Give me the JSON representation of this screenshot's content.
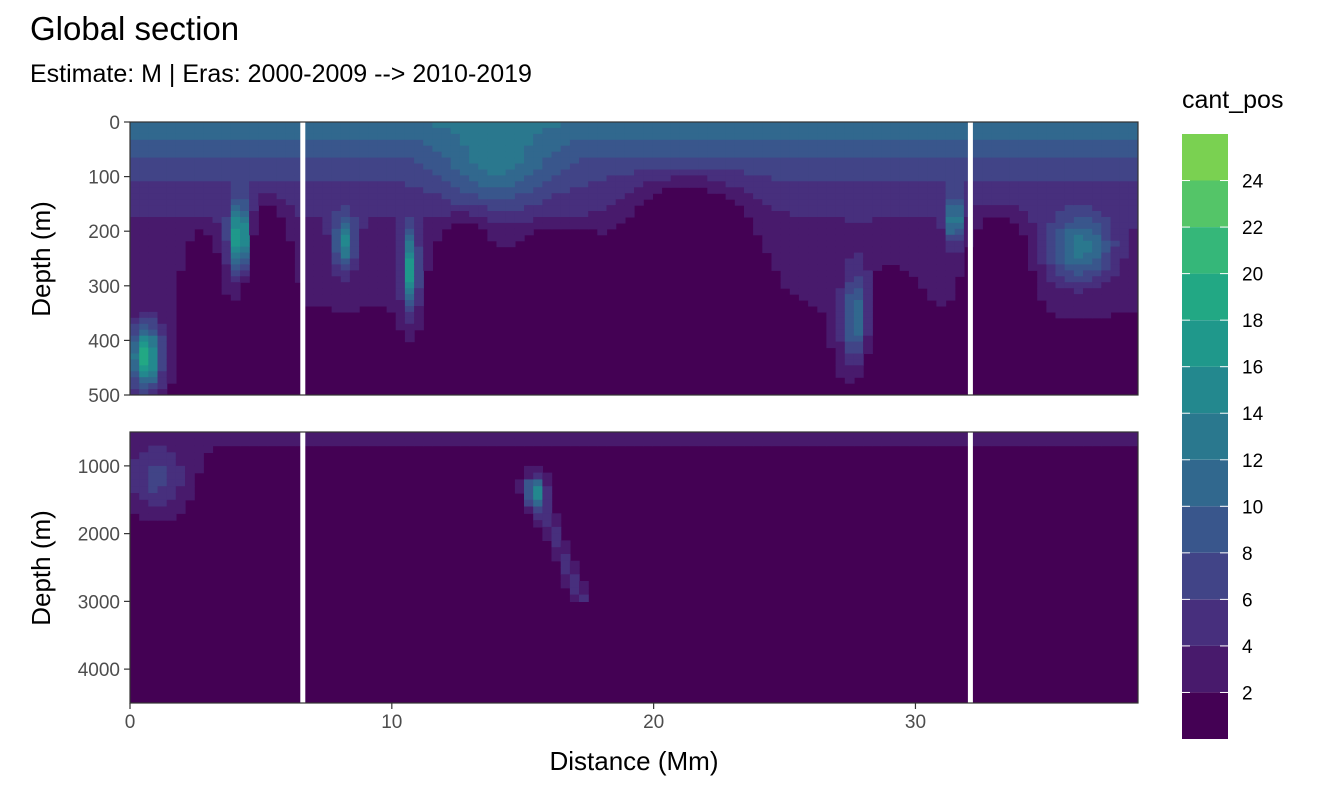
{
  "chart_data": {
    "type": "heatmap",
    "title": "Global section",
    "subtitle": "Estimate: M  | Eras: 2000-2009 --> 2010-2019",
    "xlabel": "Distance (Mm)",
    "ylabel": "Depth (m)",
    "xlim": [
      0,
      38.5
    ],
    "x_ticks": [
      0,
      10,
      20,
      30
    ],
    "x_tick_labels": [
      "0",
      "10",
      "20",
      "30"
    ],
    "panels": [
      {
        "name": "upper",
        "ylim": [
          0,
          500
        ],
        "y_ticks": [
          0,
          100,
          200,
          300,
          400,
          500
        ],
        "y_tick_labels": [
          "0",
          "100",
          "200",
          "300",
          "400",
          "500"
        ]
      },
      {
        "name": "lower",
        "ylim": [
          500,
          4500
        ],
        "y_ticks": [
          1000,
          2000,
          3000,
          4000
        ],
        "y_tick_labels": [
          "1000",
          "2000",
          "3000",
          "4000"
        ]
      }
    ],
    "section_gaps_x": [
      6.6,
      32.1
    ],
    "features": [
      {
        "panel": "upper",
        "x": 0.6,
        "y": 430,
        "value": 21,
        "spread_x": 0.6,
        "spread_y": 60
      },
      {
        "panel": "upper",
        "x": 4.2,
        "y": 210,
        "value": 22,
        "spread_x": 0.4,
        "spread_y": 60
      },
      {
        "panel": "upper",
        "x": 8.2,
        "y": 220,
        "value": 16,
        "spread_x": 0.4,
        "spread_y": 50
      },
      {
        "panel": "upper",
        "x": 10.7,
        "y": 270,
        "value": 19,
        "spread_x": 0.3,
        "spread_y": 70
      },
      {
        "panel": "upper",
        "x": 14.0,
        "y": 60,
        "value": 14,
        "spread_x": 2.0,
        "spread_y": 80
      },
      {
        "panel": "upper",
        "x": 27.8,
        "y": 360,
        "value": 14,
        "spread_x": 0.6,
        "spread_y": 80
      },
      {
        "panel": "upper",
        "x": 31.5,
        "y": 180,
        "value": 17,
        "spread_x": 0.3,
        "spread_y": 40
      },
      {
        "panel": "upper",
        "x": 36.3,
        "y": 230,
        "value": 14,
        "spread_x": 1.2,
        "spread_y": 60
      },
      {
        "panel": "lower",
        "x": 15.5,
        "y": 1400,
        "value": 14,
        "spread_x": 0.4,
        "spread_y": 250
      },
      {
        "panel": "lower",
        "x": 1.0,
        "y": 1200,
        "value": 8,
        "spread_x": 1.2,
        "spread_y": 500
      }
    ],
    "legend": {
      "title": "cant_pos",
      "position": "right",
      "breaks": [
        0,
        2,
        4,
        6,
        8,
        10,
        12,
        14,
        16,
        18,
        20,
        22,
        24,
        26
      ],
      "labels": [
        "2",
        "4",
        "6",
        "8",
        "10",
        "12",
        "14",
        "16",
        "18",
        "20",
        "22",
        "24"
      ],
      "colors": [
        "#440154",
        "#481a6c",
        "#472f7d",
        "#414487",
        "#39568c",
        "#31688e",
        "#2a788e",
        "#23888e",
        "#1f988b",
        "#22a884",
        "#35b779",
        "#54c568",
        "#7ad151",
        "#a5db36",
        "#d2e21b",
        "#fde725"
      ]
    }
  }
}
